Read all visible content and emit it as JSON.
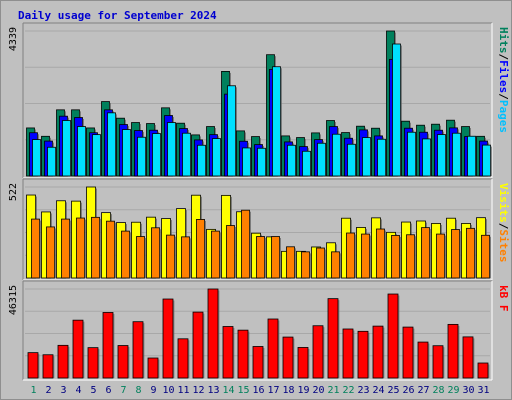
{
  "title": "Daily usage for September 2024",
  "colors": {
    "hits": "#00805c",
    "files": "#0000ff",
    "pages": "#00e0ff",
    "visits": "#ffff00",
    "sites": "#ff8000",
    "kbytes": "#ff0000",
    "weekend": "#00805c",
    "weekday": "#000080"
  },
  "chart_data": {
    "type": "bar",
    "categories": [
      "1",
      "2",
      "3",
      "4",
      "5",
      "6",
      "7",
      "8",
      "9",
      "10",
      "11",
      "12",
      "13",
      "14",
      "15",
      "16",
      "17",
      "18",
      "19",
      "20",
      "21",
      "22",
      "23",
      "24",
      "25",
      "26",
      "27",
      "28",
      "29",
      "30",
      "31"
    ],
    "weekend_days": [
      "1",
      "7",
      "8",
      "14",
      "15",
      "21",
      "22",
      "28",
      "29"
    ],
    "panels": [
      {
        "name": "usage",
        "ymax": 4339,
        "ymax_label": "4339",
        "side_labels": [
          {
            "text": "Pages",
            "color": "#00c0ff"
          },
          {
            "text": "Files",
            "color": "#0000ff"
          },
          {
            "text": "Hits",
            "color": "#00805c"
          }
        ],
        "series": [
          {
            "name": "Hits",
            "values": [
              1438,
              1188,
              1980,
              1980,
              1438,
              2227,
              1730,
              1600,
              1570,
              2040,
              1580,
              1230,
              1480,
              3130,
              1350,
              1180,
              3630,
              1200,
              1150,
              1290,
              1660,
              1300,
              1490,
              1430,
              4339,
              1640,
              1520,
              1550,
              1670,
              1480,
              1188
            ]
          },
          {
            "name": "Files",
            "values": [
              1295,
              1045,
              1790,
              1750,
              1295,
              1980,
              1540,
              1360,
              1370,
              1810,
              1420,
              1080,
              1238,
              2450,
              1040,
              940,
              3190,
              1020,
              880,
              1090,
              1480,
              1130,
              1380,
              1200,
              3490,
              1430,
              1310,
              1370,
              1440,
              1180,
              1045
            ]
          },
          {
            "name": "Pages",
            "values": [
              1090,
              860,
              1660,
              1480,
              1238,
              1890,
              1390,
              1160,
              1270,
              1600,
              1280,
              920,
              1120,
              2700,
              840,
              830,
              3270,
              920,
              740,
              980,
              1250,
              950,
              1150,
              1100,
              3950,
              1310,
              1110,
              1240,
              1280,
              1190,
              925
            ]
          }
        ]
      },
      {
        "name": "visits",
        "ymax": 522,
        "ymax_label": "522",
        "side_labels": [
          {
            "text": "Sites",
            "color": "#ff8000"
          },
          {
            "text": "Visits",
            "color": "#ffff00"
          }
        ],
        "series": [
          {
            "name": "Visits",
            "values": [
              476,
              379,
              443,
              441,
              522,
              375,
              318,
              320,
              349,
              341,
              398,
              475,
              279,
              474,
              380,
              257,
              236,
              153,
              153,
              178,
              202,
              343,
              290,
              345,
              262,
              321,
              327,
              313,
              343,
              313,
              346
            ]
          },
          {
            "name": "Sites",
            "values": [
              338,
              293,
              338,
              344,
              348,
              326,
              269,
              238,
              288,
              246,
              236,
              336,
              269,
              301,
              389,
              238,
              238,
              179,
              150,
              172,
              150,
              258,
              252,
              281,
              244,
              248,
              289,
              252,
              278,
              285,
              245
            ]
          }
        ]
      },
      {
        "name": "kbytes",
        "ymax": 46315,
        "ymax_label": "46315",
        "side_labels": [
          {
            "text": "kB F",
            "color": "#ff0000"
          }
        ],
        "series": [
          {
            "name": "KBytes",
            "values": [
              13200,
              12100,
              17000,
              30100,
              15800,
              34100,
              16900,
              29300,
              10400,
              41100,
              20400,
              34300,
              46315,
              26800,
              24900,
              16400,
              30700,
              21300,
              15900,
              27200,
              41300,
              25500,
              24300,
              27000,
              43700,
              26500,
              18700,
              16800,
              27900,
              21400,
              7800
            ]
          }
        ]
      }
    ]
  }
}
